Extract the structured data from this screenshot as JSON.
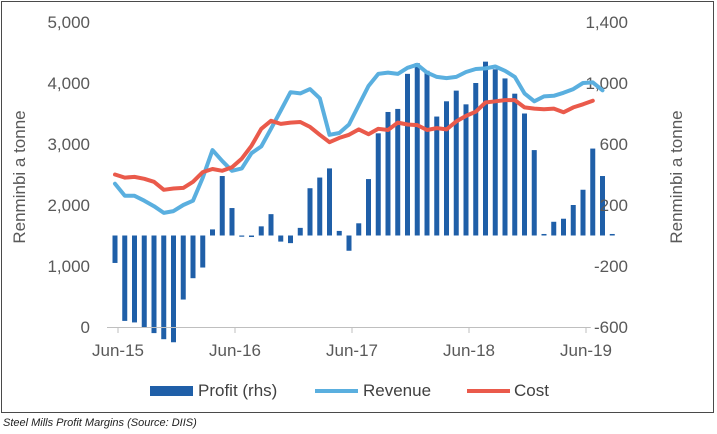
{
  "caption": "Steel Mills Profit Margins (Source: DIIS)",
  "chart_data": {
    "type": "bar+line",
    "title": "",
    "left_axis": {
      "label": "Renminbi a tonne",
      "range": [
        0,
        5000
      ],
      "ticks": [
        0,
        1000,
        2000,
        3000,
        4000,
        5000
      ],
      "tick_labels": [
        "0",
        "1,000",
        "2,000",
        "3,000",
        "4,000",
        "5,000"
      ]
    },
    "right_axis": {
      "label": "Renminbi a tonne",
      "range": [
        -600,
        1400
      ],
      "ticks": [
        -600,
        -200,
        200,
        600,
        1000,
        1400
      ],
      "tick_labels": [
        "-600",
        "-200",
        "200",
        "600",
        "1,000",
        "1,400"
      ]
    },
    "x_axis": {
      "start": "2015-06",
      "end": "2019-06",
      "tick_labels": [
        "Jun-15",
        "Jun-16",
        "Jun-17",
        "Jun-18",
        "Jun-19"
      ],
      "tick_positions_months": [
        0,
        12,
        24,
        36,
        48
      ]
    },
    "grid": false,
    "legend_position": "bottom",
    "colors": {
      "profit": "#1f5fa8",
      "revenue": "#5aafdf",
      "cost": "#ea5a4b"
    },
    "series": [
      {
        "name": "Profit (rhs)",
        "type": "bar",
        "axis": "right",
        "start": "2015-06",
        "values": [
          -180,
          -560,
          -570,
          -600,
          -640,
          -680,
          -700,
          -420,
          -280,
          -210,
          40,
          390,
          180,
          0,
          -10,
          60,
          140,
          -40,
          -50,
          50,
          310,
          380,
          440,
          30,
          -100,
          80,
          370,
          670,
          810,
          830,
          1060,
          1130,
          1080,
          780,
          880,
          950,
          860,
          1000,
          1140,
          1090,
          1030,
          930,
          800,
          560,
          10,
          90,
          110,
          200,
          300,
          570,
          390,
          10
        ]
      },
      {
        "name": "Revenue",
        "type": "line",
        "axis": "left",
        "start": "2015-06",
        "values": [
          2350,
          2150,
          2150,
          2070,
          1980,
          1870,
          1900,
          2000,
          2070,
          2450,
          2900,
          2720,
          2560,
          2600,
          2850,
          2960,
          3250,
          3550,
          3850,
          3830,
          3900,
          3750,
          3150,
          3180,
          3320,
          3640,
          3950,
          4150,
          4170,
          4150,
          4250,
          4300,
          4170,
          4100,
          4080,
          4100,
          4180,
          4230,
          4240,
          4270,
          4200,
          4100,
          3830,
          3700,
          3780,
          3790,
          3840,
          3900,
          4000,
          4010,
          3880
        ]
      },
      {
        "name": "Cost",
        "type": "line",
        "axis": "left",
        "start": "2015-06",
        "values": [
          2500,
          2450,
          2460,
          2430,
          2380,
          2250,
          2270,
          2280,
          2380,
          2540,
          2590,
          2560,
          2620,
          2760,
          2970,
          3250,
          3380,
          3330,
          3350,
          3360,
          3280,
          3150,
          3030,
          3100,
          3150,
          3240,
          3160,
          3250,
          3230,
          3350,
          3320,
          3310,
          3230,
          3260,
          3240,
          3370,
          3460,
          3530,
          3680,
          3700,
          3720,
          3720,
          3600,
          3580,
          3570,
          3580,
          3520,
          3600,
          3650,
          3710
        ]
      }
    ]
  }
}
